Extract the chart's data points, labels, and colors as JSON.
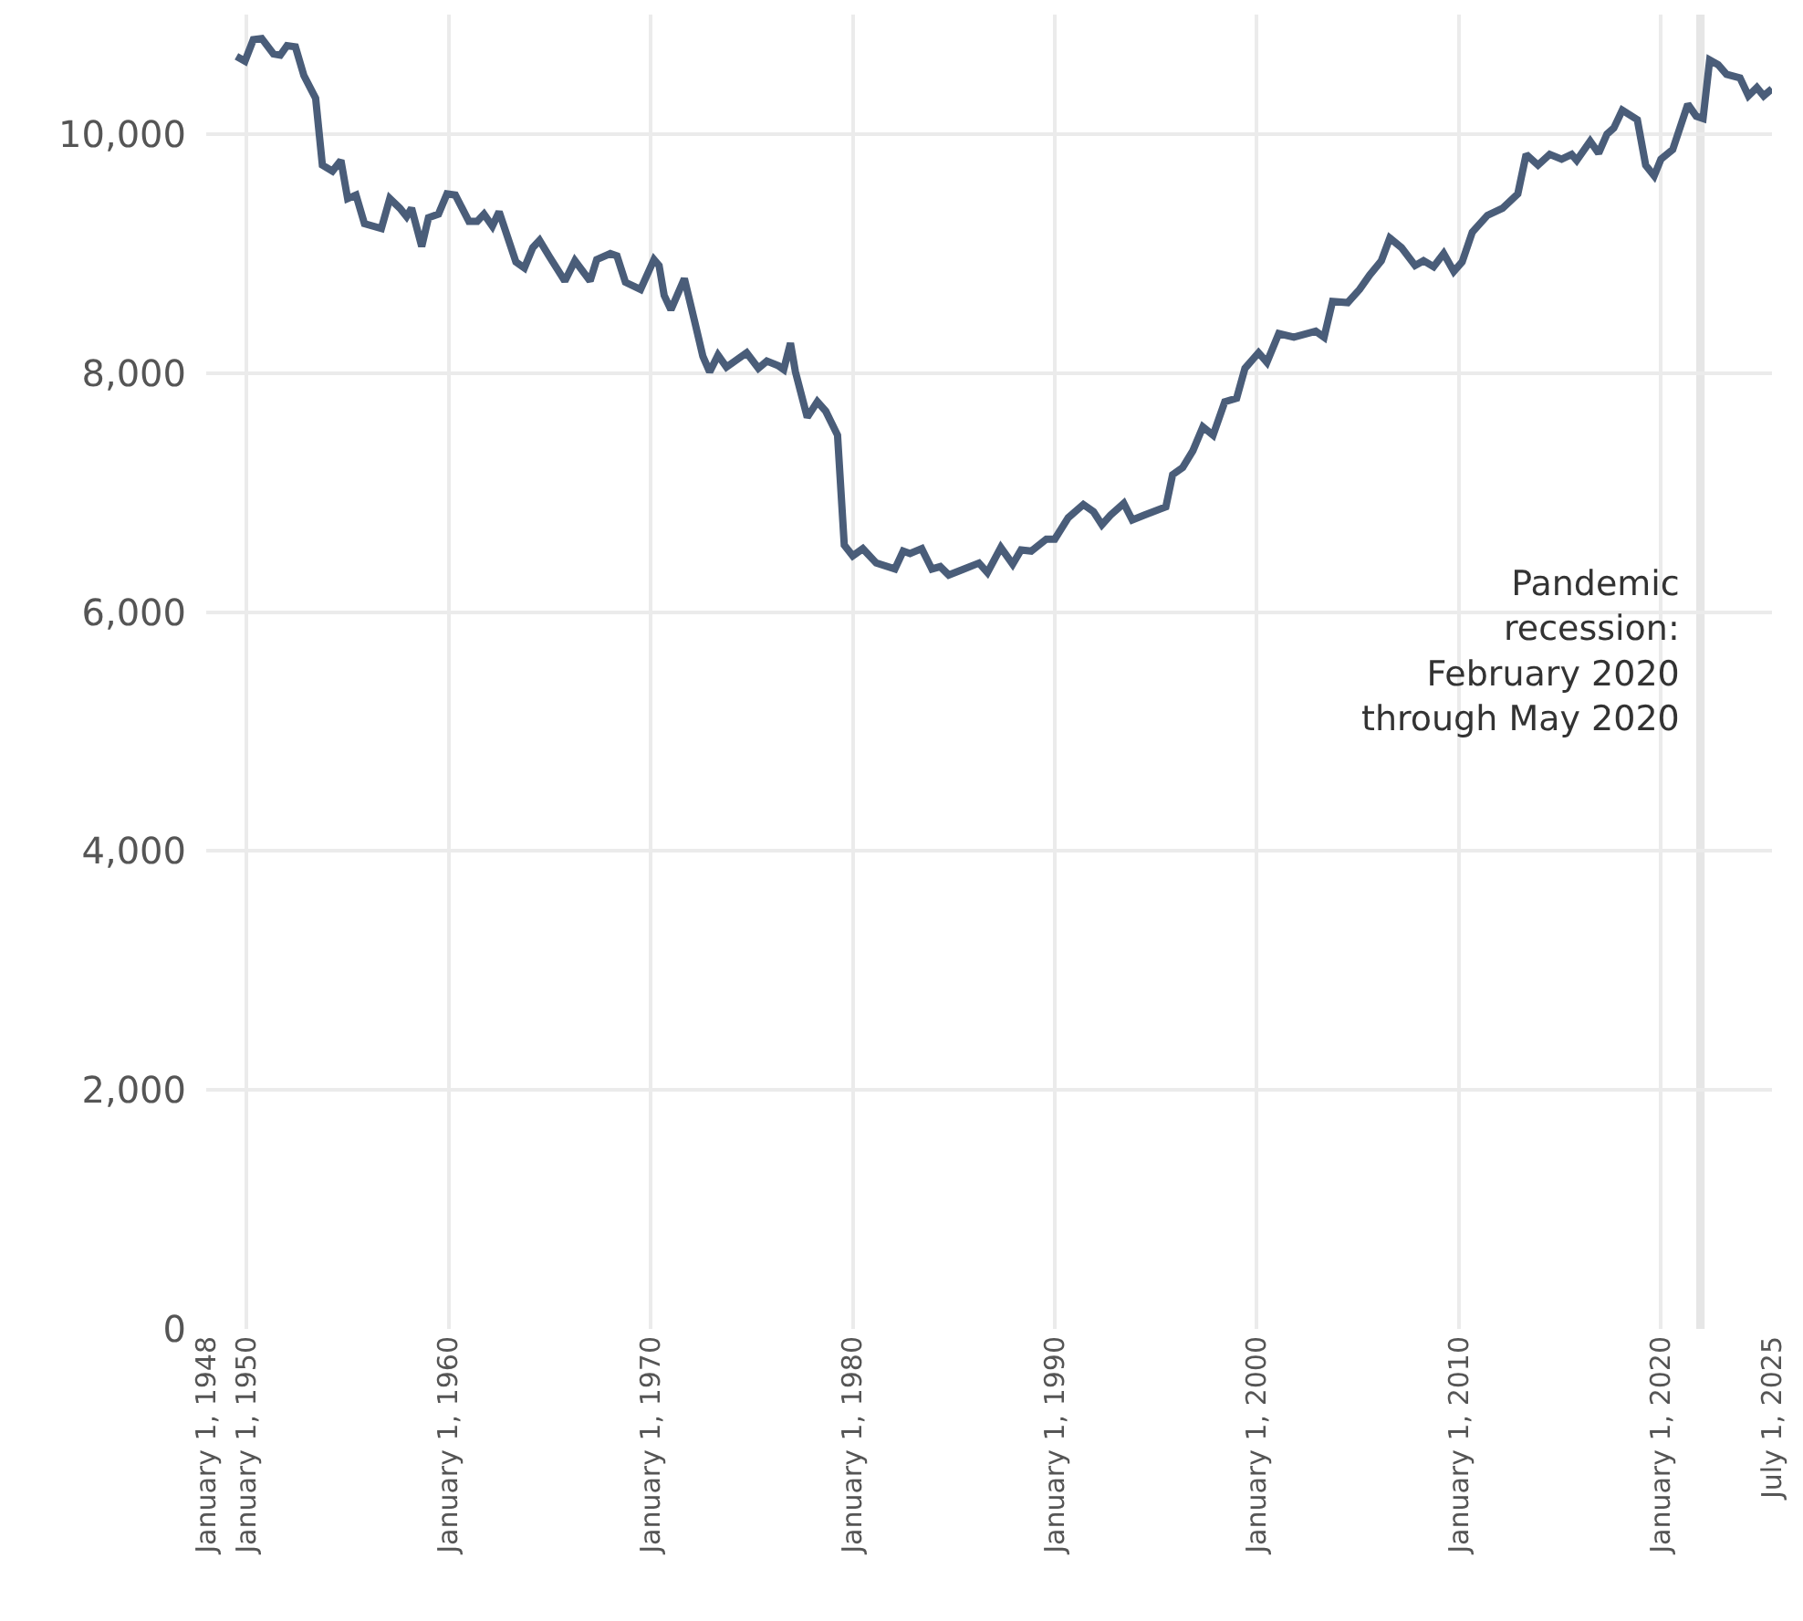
{
  "chart_data": {
    "type": "line",
    "x": [
      "1949-07",
      "1949-12",
      "1950-05",
      "1950-10",
      "1951-05",
      "1951-09",
      "1952-01",
      "1952-06",
      "1952-11",
      "1953-06",
      "1953-10",
      "1954-04",
      "1954-09",
      "1955-01",
      "1955-06",
      "1955-11",
      "1956-09",
      "1957-02",
      "1957-08",
      "1957-12",
      "1958-03",
      "1958-09",
      "1959-01",
      "1959-07",
      "1959-12",
      "1960-05",
      "1961-01",
      "1961-06",
      "1961-10",
      "1962-03",
      "1962-07",
      "1962-11",
      "1963-05",
      "1963-10",
      "1964-03",
      "1964-07",
      "1965-01",
      "1965-10",
      "1966-04",
      "1967-01",
      "1967-05",
      "1968-01",
      "1968-05",
      "1968-10",
      "1969-07",
      "1970-03",
      "1970-06",
      "1970-09",
      "1971-01",
      "1971-09",
      "1972-03",
      "1972-08",
      "1972-12",
      "1973-05",
      "1973-10",
      "1974-10",
      "1975-05",
      "1975-10",
      "1976-05",
      "1976-08",
      "1976-12",
      "1977-03",
      "1977-10",
      "1978-04",
      "1978-09",
      "1979-04",
      "1979-08",
      "1980-01",
      "1980-07",
      "1981-03",
      "1982-02",
      "1982-07",
      "1982-11",
      "1983-06",
      "1983-12",
      "1984-05",
      "1984-10",
      "1985-07",
      "1986-04",
      "1986-09",
      "1987-05",
      "1987-12",
      "1988-05",
      "1988-11",
      "1989-08",
      "1990-01",
      "1990-09",
      "1991-06",
      "1991-12",
      "1992-05",
      "1992-10",
      "1993-06",
      "1993-11",
      "1994-06",
      "1995-07",
      "1995-11",
      "1996-05",
      "1996-11",
      "1997-05",
      "1997-11",
      "1998-06",
      "1999-01",
      "1999-06",
      "2000-02",
      "2000-07",
      "2001-02",
      "2001-11",
      "2002-12",
      "2003-05",
      "2003-10",
      "2004-07",
      "2005-02",
      "2005-08",
      "2006-03",
      "2006-08",
      "2007-03",
      "2007-11",
      "2008-04",
      "2008-10",
      "2009-04",
      "2009-10",
      "2010-03",
      "2010-09",
      "2011-06",
      "2012-03",
      "2012-12",
      "2013-05",
      "2013-12",
      "2014-07",
      "2015-02",
      "2015-08",
      "2015-11",
      "2016-07",
      "2016-12",
      "2017-05",
      "2017-09",
      "2018-02",
      "2018-11",
      "2019-04",
      "2019-09",
      "2020-01",
      "2020-08",
      "2021-05",
      "2021-10",
      "2022-02",
      "2022-06",
      "2022-11",
      "2023-04",
      "2023-12",
      "2024-05",
      "2024-10",
      "2025-02",
      "2025-07"
    ],
    "series": [
      {
        "color": "#4a5d79",
        "values": [
          10650,
          10610,
          10790,
          10800,
          10670,
          10660,
          10740,
          10730,
          10490,
          10300,
          9740,
          9690,
          9780,
          9460,
          9490,
          9250,
          9210,
          9460,
          9380,
          9310,
          9380,
          9060,
          9300,
          9330,
          9500,
          9490,
          9270,
          9270,
          9330,
          9230,
          9350,
          9180,
          8930,
          8880,
          9050,
          9110,
          8970,
          8770,
          8940,
          8770,
          8950,
          9000,
          8980,
          8760,
          8700,
          8950,
          8900,
          8650,
          8530,
          8790,
          8440,
          8140,
          8010,
          8150,
          8050,
          8170,
          8040,
          8100,
          8060,
          8030,
          8250,
          8010,
          7630,
          7760,
          7680,
          7480,
          6560,
          6470,
          6530,
          6410,
          6360,
          6510,
          6490,
          6530,
          6360,
          6380,
          6310,
          6360,
          6410,
          6330,
          6540,
          6400,
          6520,
          6510,
          6610,
          6610,
          6790,
          6900,
          6840,
          6730,
          6810,
          6910,
          6770,
          6810,
          6880,
          7150,
          7210,
          7350,
          7550,
          7480,
          7760,
          7790,
          8040,
          8170,
          8090,
          8330,
          8300,
          8350,
          8300,
          8600,
          8590,
          8700,
          8820,
          8940,
          9130,
          9050,
          8900,
          8940,
          8890,
          9000,
          8850,
          8930,
          9180,
          9320,
          9380,
          9500,
          9830,
          9740,
          9830,
          9790,
          9830,
          9780,
          9940,
          9840,
          10000,
          10050,
          10200,
          10120,
          9740,
          9650,
          9790,
          9870,
          10250,
          10150,
          10130,
          10620,
          10580,
          10500,
          10470,
          10320,
          10390,
          10320,
          10380
        ]
      }
    ],
    "xlim": [
      "1948-01-01",
      "2025-07-01"
    ],
    "xticks": [
      {
        "value": "1948-01-01",
        "label": "January 1, 1948"
      },
      {
        "value": "1950-01-01",
        "label": "January 1, 1950"
      },
      {
        "value": "1960-01-01",
        "label": "January 1, 1960"
      },
      {
        "value": "1970-01-01",
        "label": "January 1, 1970"
      },
      {
        "value": "1980-01-01",
        "label": "January 1, 1980"
      },
      {
        "value": "1990-01-01",
        "label": "January 1, 1990"
      },
      {
        "value": "2000-01-01",
        "label": "January 1, 2000"
      },
      {
        "value": "2010-01-01",
        "label": "January 1, 2010"
      },
      {
        "value": "2020-01-01",
        "label": "January 1, 2020"
      },
      {
        "value": "2025-07-01",
        "label": "July 1, 2025"
      }
    ],
    "ylim": [
      0,
      11000
    ],
    "yticks": [
      0,
      {
        "value": 2000,
        "label": "2,000"
      },
      {
        "value": 4000,
        "label": "4,000"
      },
      {
        "value": 6000,
        "label": "6,000"
      },
      {
        "value": 8000,
        "label": "8,000"
      },
      {
        "value": 10000,
        "label": "10,000"
      }
    ],
    "bands": [
      {
        "axis": "x",
        "from": "2021-10",
        "to": "2022-03",
        "color": "#e6e6e6",
        "label": "Pandemic\nrecession:\nFebruary 2020\nthrough May 2020"
      }
    ],
    "grid": true,
    "line_style": "solid",
    "marker": "none"
  }
}
